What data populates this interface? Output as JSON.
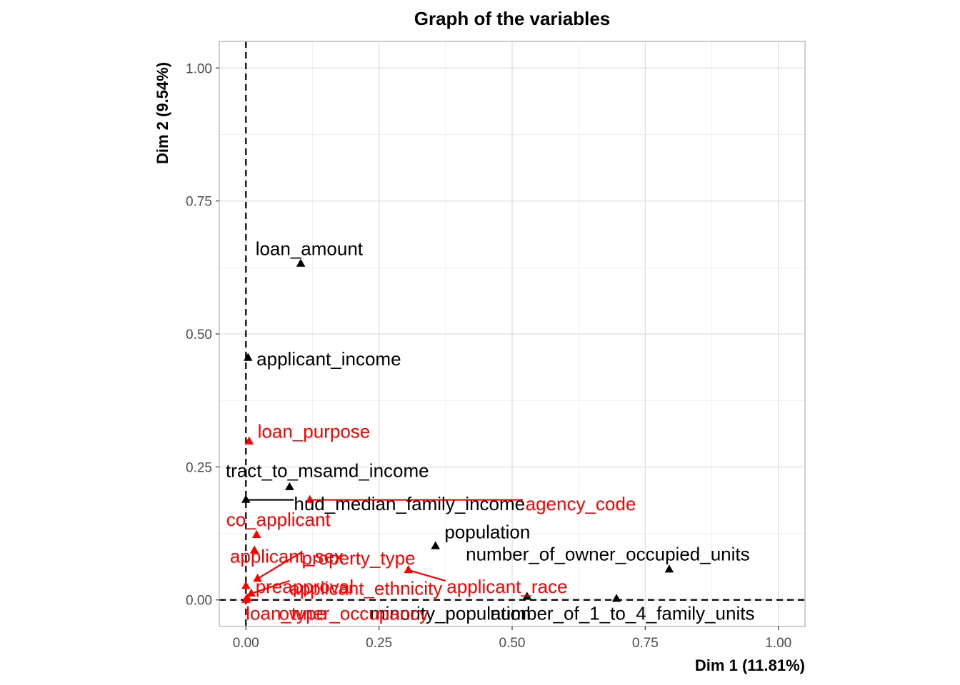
{
  "chart_data": {
    "type": "scatter",
    "title": "Graph of the variables",
    "xlabel": "Dim 1 (11.81%)",
    "ylabel": "Dim 2 (9.54%)",
    "xlim": [
      -0.05,
      1.05
    ],
    "ylim": [
      -0.05,
      1.05
    ],
    "x_ticks": [
      0.0,
      0.25,
      0.5,
      0.75,
      1.0
    ],
    "x_tick_labels": [
      "0.00",
      "0.25",
      "0.50",
      "0.75",
      "1.00"
    ],
    "y_ticks": [
      0.0,
      0.25,
      0.5,
      0.75,
      1.0
    ],
    "y_tick_labels": [
      "0.00",
      "0.25",
      "0.50",
      "0.75",
      "1.00"
    ],
    "grid": true,
    "reference_lines": {
      "x": 0,
      "y": 0
    },
    "colors": {
      "quantitative": "#000000",
      "qualitative": "#ff0000"
    },
    "points": [
      {
        "label": "loan_amount",
        "x": 0.103,
        "y": 0.632,
        "group": "quantitative",
        "label_x": 0.018,
        "label_y": 0.66,
        "anchor": "start"
      },
      {
        "label": "applicant_income",
        "x": 0.004,
        "y": 0.455,
        "group": "quantitative",
        "label_x": 0.02,
        "label_y": 0.453,
        "anchor": "start"
      },
      {
        "label": "tract_to_msamd_income",
        "x": 0.082,
        "y": 0.212,
        "group": "quantitative",
        "label_x": -0.038,
        "label_y": 0.243,
        "anchor": "start"
      },
      {
        "label": "hud_median_family_income",
        "x": 0.0,
        "y": 0.188,
        "group": "quantitative",
        "label_x": 0.09,
        "label_y": 0.181,
        "anchor": "start",
        "leader": [
          0.09,
          0.188
        ]
      },
      {
        "label": "population",
        "x": 0.356,
        "y": 0.101,
        "group": "quantitative",
        "label_x": 0.373,
        "label_y": 0.128,
        "anchor": "start"
      },
      {
        "label": "number_of_owner_occupied_units",
        "x": 0.795,
        "y": 0.057,
        "group": "quantitative",
        "label_x": 0.413,
        "label_y": 0.086,
        "anchor": "start"
      },
      {
        "label": "minority_population",
        "x": 0.528,
        "y": 0.006,
        "group": "quantitative",
        "label_x": 0.233,
        "label_y": -0.025,
        "anchor": "start"
      },
      {
        "label": "number_of_1_to_4_family_units",
        "x": 0.696,
        "y": 0.002,
        "group": "quantitative",
        "label_x": 0.459,
        "label_y": -0.025,
        "anchor": "start"
      },
      {
        "label": "loan_purpose",
        "x": 0.006,
        "y": 0.298,
        "group": "qualitative",
        "label_x": 0.022,
        "label_y": 0.317,
        "anchor": "start"
      },
      {
        "label": "agency_code",
        "x": 0.12,
        "y": 0.188,
        "group": "qualitative",
        "label_x": 0.525,
        "label_y": 0.181,
        "anchor": "start",
        "leader": [
          0.52,
          0.188
        ]
      },
      {
        "label": "co_applicant",
        "x": 0.02,
        "y": 0.122,
        "group": "qualitative",
        "label_x": -0.037,
        "label_y": 0.151,
        "anchor": "start"
      },
      {
        "label": "applicant_sex",
        "x": 0.016,
        "y": 0.093,
        "group": "qualitative",
        "label_x": -0.03,
        "label_y": 0.082,
        "anchor": "start"
      },
      {
        "label": "property_type",
        "x": 0.022,
        "y": 0.04,
        "group": "qualitative",
        "label_x": 0.105,
        "label_y": 0.079,
        "anchor": "start",
        "leader": [
          0.105,
          0.09
        ]
      },
      {
        "label": "preapproval",
        "x": 0.0,
        "y": 0.026,
        "group": "qualitative",
        "label_x": 0.018,
        "label_y": 0.025,
        "anchor": "start"
      },
      {
        "label": "applicant_ethnicity",
        "x": 0.01,
        "y": 0.012,
        "group": "qualitative",
        "label_x": 0.082,
        "label_y": 0.022,
        "anchor": "start",
        "leader": [
          0.082,
          0.036
        ]
      },
      {
        "label": "applicant_race",
        "x": 0.305,
        "y": 0.056,
        "group": "qualitative",
        "label_x": 0.377,
        "label_y": 0.025,
        "anchor": "start",
        "leader": [
          0.375,
          0.036
        ]
      },
      {
        "label": "loan_type",
        "x": 0.0,
        "y": 0.0,
        "group": "qualitative",
        "label_x": 0.0,
        "label_y": -0.025,
        "anchor": "start"
      },
      {
        "label": "owner_occupancy",
        "x": 0.003,
        "y": 0.003,
        "group": "qualitative",
        "label_x": 0.062,
        "label_y": -0.025,
        "anchor": "start"
      }
    ]
  }
}
